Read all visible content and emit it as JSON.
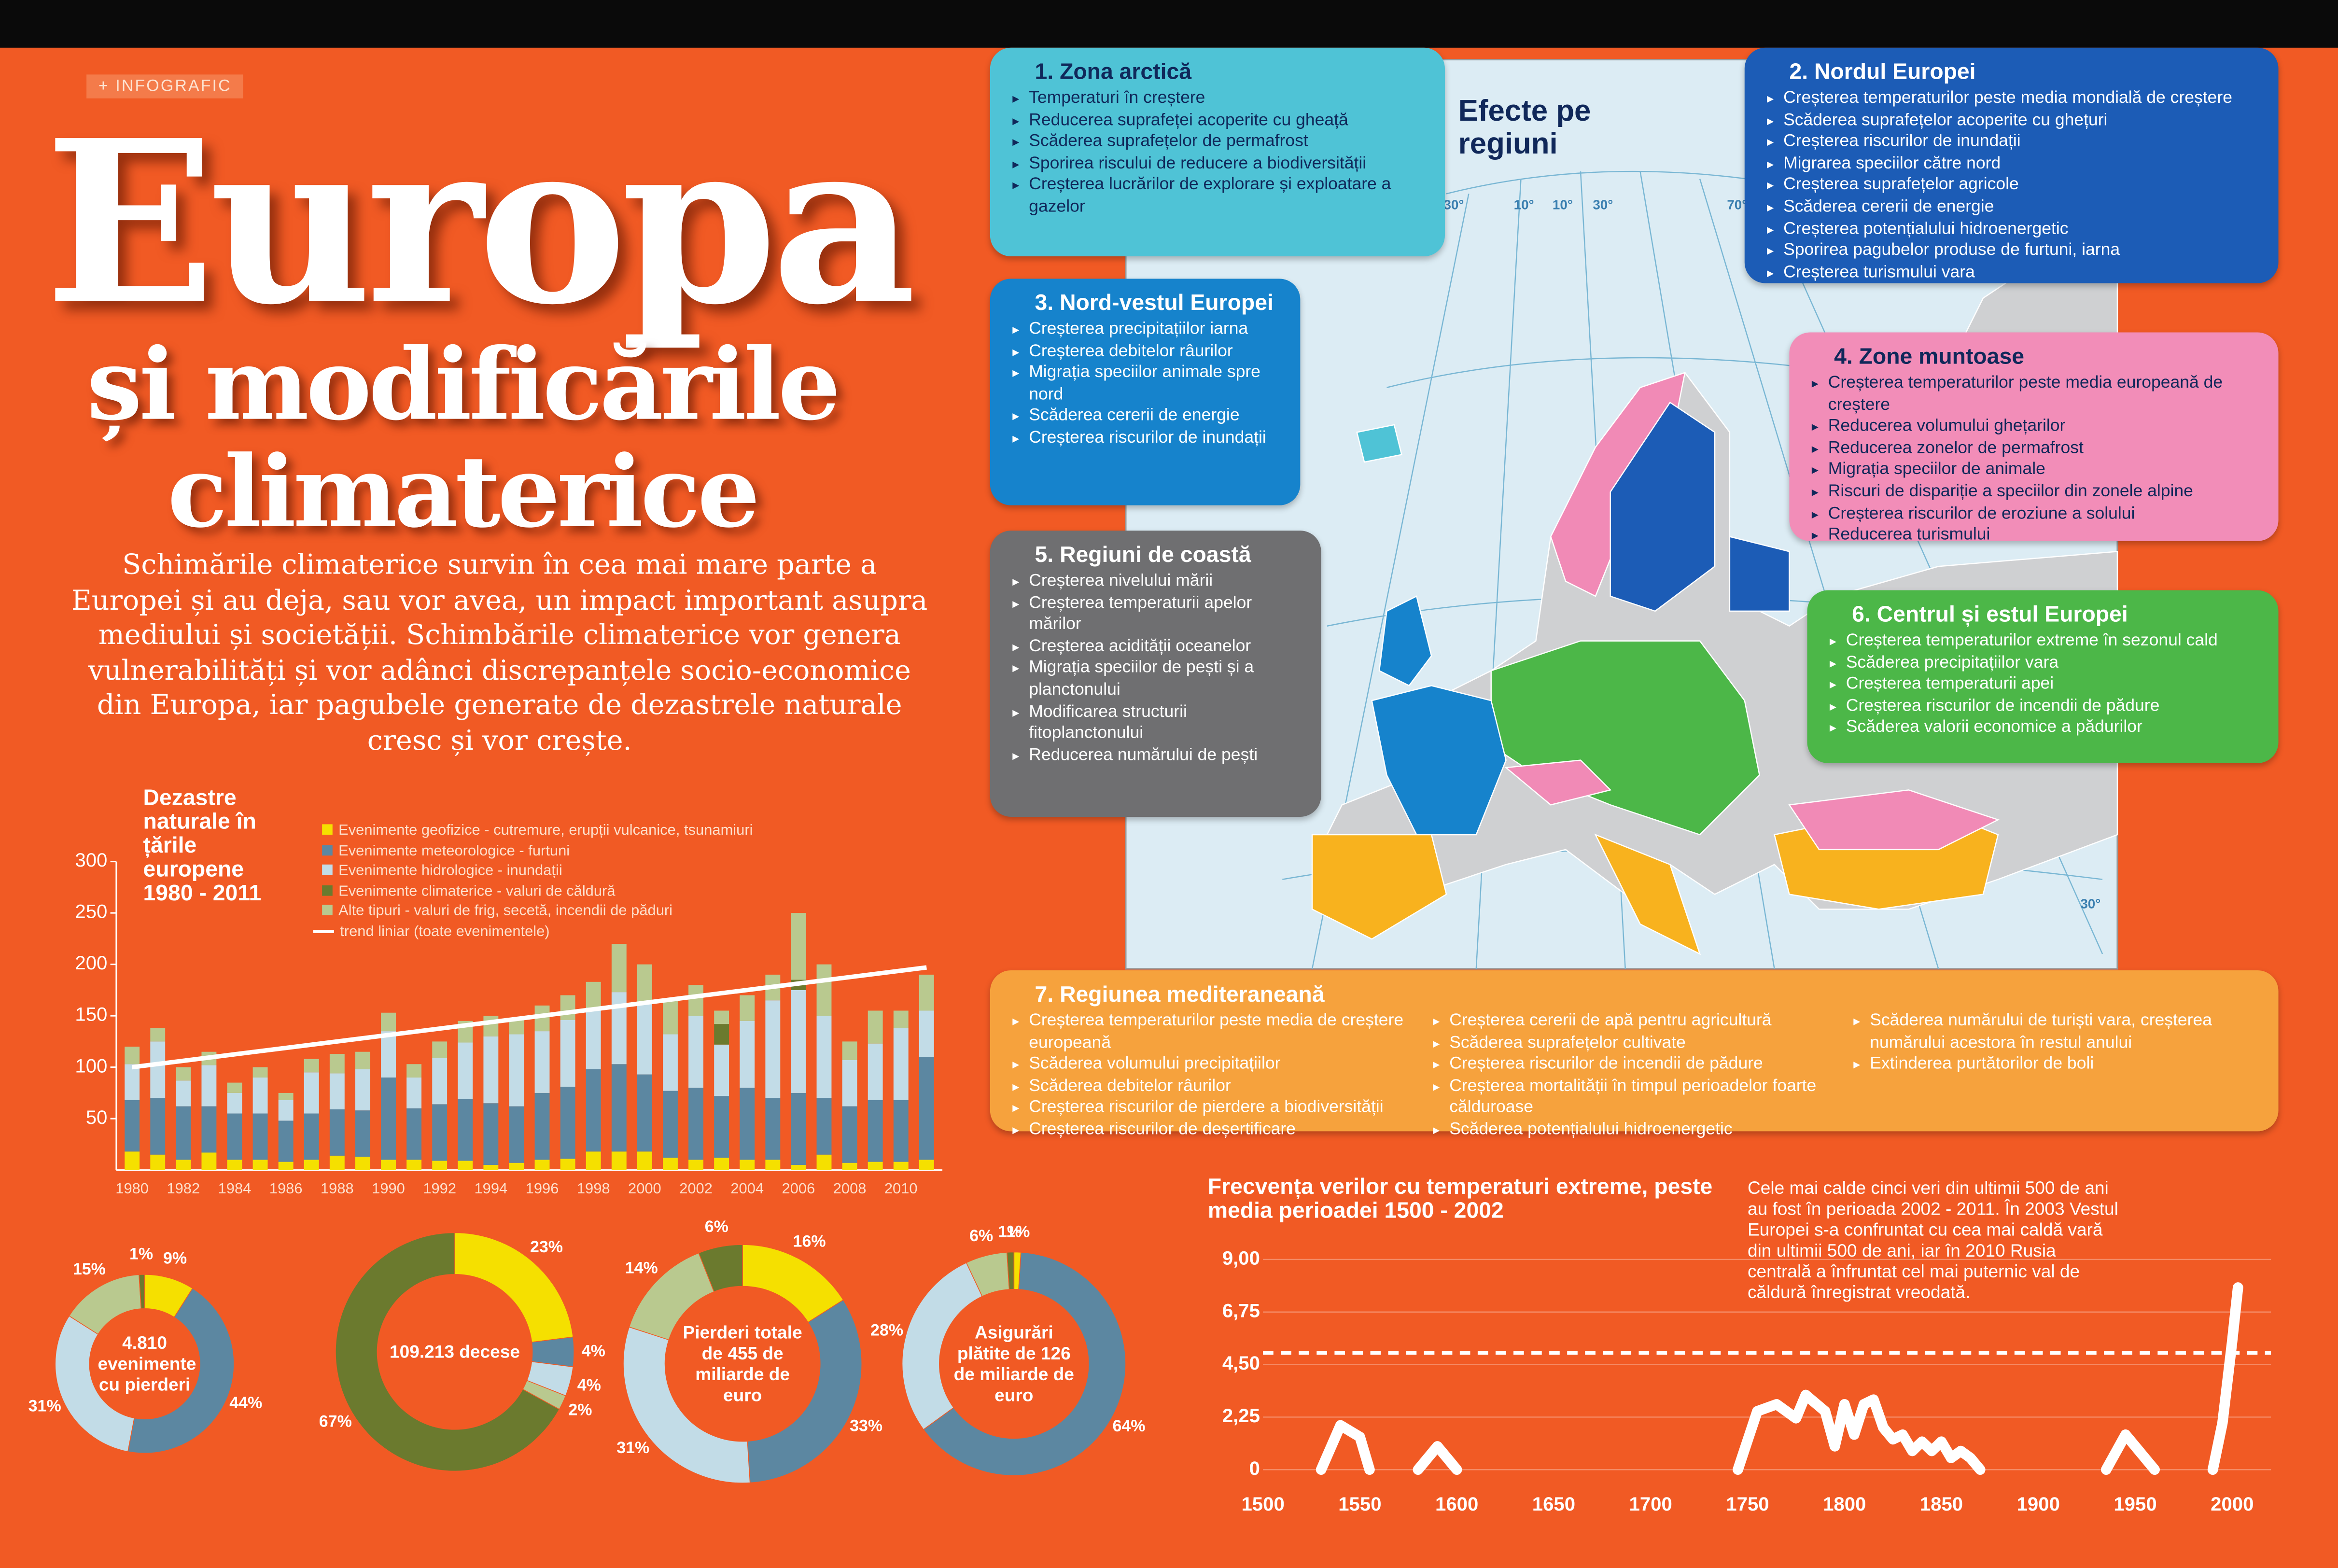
{
  "header": {
    "tag": "+ INFOGRAFIC",
    "title": "Europa",
    "subtitle": "și modificările climaterice",
    "intro": "Schimările climaterice survin în cea mai mare parte a Europei și au deja, sau vor avea, un impact important asupra mediului și societății. Schimbările climaterice vor genera vulnerabilități și vor adânci discrepanțele socio-economice din Europa, iar pagubele generate de dezastrele naturale cresc și vor crește."
  },
  "map": {
    "title": "Efecte pe regiuni",
    "labels": [
      "30°",
      "10°",
      "10°",
      "30°",
      "70°",
      "30°"
    ]
  },
  "regions": [
    {
      "title": "1. Zona arctică",
      "color": "#4fc3d6",
      "text_color": "#10285a",
      "items": [
        "Temperaturi în creștere",
        "Reducerea suprafeței acoperite cu gheață",
        "Scăderea suprafețelor de permafrost",
        "Sporirea riscului de reducere a biodiversității",
        "Creșterea lucrărilor de explorare și exploatare a gazelor"
      ]
    },
    {
      "title": "2. Nordul Europei",
      "color": "#1c5cb6",
      "text_color": "#ffffff",
      "items": [
        "Creșterea temperaturilor peste media mondială de creștere",
        "Scăderea suprafețelor acoperite cu ghețuri",
        "Creșterea riscurilor de inundații",
        "Migrarea speciilor către nord",
        "Creșterea suprafețelor agricole",
        "Scăderea cererii de energie",
        "Creșterea potențialului hidroenergetic",
        "Sporirea pagubelor produse de furtuni, iarna",
        "Creșterea turismului vara"
      ]
    },
    {
      "title": "3. Nord-vestul Europei",
      "color": "#1683cc",
      "text_color": "#ffffff",
      "items": [
        "Creșterea precipitațiilor iarna",
        "Creșterea debitelor râurilor",
        "Migrația speciilor animale spre nord",
        "Scăderea cererii de energie",
        "Creșterea riscurilor de inundații"
      ]
    },
    {
      "title": "4.  Zone muntoase",
      "color": "#f28db8",
      "text_color": "#10285a",
      "items": [
        "Creșterea temperaturilor peste media europeană de creștere",
        "Reducerea volumului ghețarilor",
        "Reducerea zonelor de permafrost",
        "Migrația speciilor de animale",
        "Riscuri de dispariție a speciilor din zonele alpine",
        "Creșterea riscurilor de eroziune a solului",
        "Reducerea turismului"
      ]
    },
    {
      "title": "5. Regiuni de coastă",
      "color": "#6f6f71",
      "text_color": "#ffffff",
      "items": [
        "Creșterea nivelului mării",
        "Creșterea temperaturii apelor mărilor",
        "Creșterea acidității oceanelor",
        "Migrația speciilor de pești și a planctonului",
        "Modificarea structurii fitoplanctonului",
        "Reducerea numărului de pești"
      ]
    },
    {
      "title": "6. Centrul și estul Europei",
      "color": "#4cb748",
      "text_color": "#ffffff",
      "items": [
        "Creșterea temperaturilor extreme în sezonul cald",
        "Scăderea precipitațiilor vara",
        "Creșterea temperaturii apei",
        "Creșterea riscurilor de incendii de pădure",
        "Scăderea valorii economice a pădurilor"
      ]
    },
    {
      "title": "7. Regiunea mediteraneană",
      "color": "#f6a23d",
      "text_color": "#ffffff",
      "items": [
        "Creșterea temperaturilor peste media de creștere europeană",
        "Scăderea volumului precipitațiilor",
        "Scăderea debitelor râurilor",
        "Creșterea riscurilor de pierdere a biodiversității",
        "Creșterea riscurilor de deșertificare",
        "Creșterea cererii de apă pentru agricultură",
        "Scăderea suprafețelor cultivate",
        "Creșterea riscurilor de incendii de pădure",
        "Creșterea mortalității în timpul perioadelor foarte călduroase",
        "Scăderea potențialului hidroenergetic",
        "Scăderea numărului de turiști vara, creșterea numărului acestora în restul anului",
        "Extinderea purtătorilor de boli"
      ]
    }
  ],
  "chart_data": [
    {
      "type": "bar",
      "stacked": true,
      "title": "Dezastre naturale în țările europene 1980 - 2011",
      "x": [
        1980,
        1981,
        1982,
        1983,
        1984,
        1985,
        1986,
        1987,
        1988,
        1989,
        1990,
        1991,
        1992,
        1993,
        1994,
        1995,
        1996,
        1997,
        1998,
        1999,
        2000,
        2001,
        2002,
        2003,
        2004,
        2005,
        2006,
        2007,
        2008,
        2009,
        2010,
        2011
      ],
      "xlim": [
        1979.5,
        2011.5
      ],
      "xticks": [
        1980,
        1982,
        1984,
        1986,
        1988,
        1990,
        1992,
        1994,
        1996,
        1998,
        2000,
        2002,
        2004,
        2006,
        2008,
        2010
      ],
      "ylim": [
        0,
        300
      ],
      "yticks": [
        50,
        100,
        150,
        200,
        250,
        300
      ],
      "series": [
        {
          "name": "Evenimente geofizice - cutremure, erupții vulcanice, tsunamiuri",
          "color": "#f5e000",
          "values": [
            18,
            15,
            10,
            17,
            10,
            10,
            8,
            10,
            14,
            13,
            10,
            10,
            9,
            9,
            5,
            7,
            10,
            11,
            18,
            18,
            18,
            12,
            10,
            12,
            10,
            10,
            5,
            15,
            7,
            8,
            8,
            10
          ]
        },
        {
          "name": "Evenimente meteorologice - furtuni",
          "color": "#5c87a1",
          "values": [
            50,
            55,
            52,
            45,
            45,
            45,
            40,
            45,
            45,
            45,
            80,
            50,
            55,
            60,
            60,
            55,
            65,
            70,
            80,
            85,
            75,
            65,
            70,
            60,
            70,
            60,
            70,
            55,
            55,
            60,
            60,
            100
          ]
        },
        {
          "name": "Evenimente hidrologice - inundații",
          "color": "#c2dce7",
          "values": [
            35,
            55,
            25,
            40,
            20,
            35,
            20,
            40,
            35,
            40,
            45,
            30,
            45,
            55,
            65,
            70,
            60,
            65,
            60,
            70,
            70,
            55,
            70,
            50,
            65,
            95,
            100,
            80,
            45,
            55,
            70,
            45
          ]
        },
        {
          "name": "Evenimente climaterice - valuri de căldură",
          "color": "#6b7a2e",
          "values": [
            0,
            0,
            0,
            0,
            0,
            0,
            0,
            0,
            0,
            0,
            0,
            0,
            0,
            0,
            0,
            0,
            0,
            0,
            0,
            0,
            0,
            0,
            0,
            20,
            0,
            0,
            10,
            0,
            0,
            0,
            0,
            0
          ]
        },
        {
          "name": "Alte tipuri - valuri de frig, secetă, incendii de păduri",
          "color": "#b9c98f",
          "values": [
            17,
            13,
            13,
            13,
            10,
            10,
            7,
            13,
            19,
            17,
            18,
            13,
            16,
            21,
            20,
            16,
            25,
            24,
            25,
            47,
            37,
            33,
            30,
            13,
            25,
            25,
            65,
            50,
            18,
            32,
            17,
            35
          ]
        }
      ],
      "trend": {
        "name": "trend liniar (toate evenimentele)",
        "color": "#ffffff",
        "x": [
          1980,
          2011
        ],
        "values": [
          100,
          197
        ]
      }
    },
    {
      "type": "pie",
      "center_label": "4.810 evenimente cu pierderi",
      "values": [
        9,
        44,
        31,
        15,
        1
      ],
      "value_labels": [
        "9%",
        "44%",
        "31%",
        "15%",
        "1%"
      ],
      "colors": [
        "#f5e000",
        "#5c87a1",
        "#c2dce7",
        "#b9c98f",
        "#6b7a2e"
      ]
    },
    {
      "type": "pie",
      "center_label": "109.213 decese",
      "values": [
        23,
        4,
        4,
        2,
        67
      ],
      "value_labels": [
        "23%",
        "4%",
        "4%",
        "2%",
        "67%"
      ],
      "colors": [
        "#f5e000",
        "#5c87a1",
        "#c2dce7",
        "#b9c98f",
        "#6b7a2e"
      ]
    },
    {
      "type": "pie",
      "center_label": "Pierderi totale de 455 de miliarde de euro",
      "values": [
        16,
        33,
        31,
        14,
        6
      ],
      "value_labels": [
        "16%",
        "33%",
        "31%",
        "14%",
        "6%"
      ],
      "colors": [
        "#f5e000",
        "#5c87a1",
        "#c2dce7",
        "#b9c98f",
        "#6b7a2e"
      ]
    },
    {
      "type": "pie",
      "center_label": "Asigurări plătite de 126 de miliarde de euro",
      "values": [
        1,
        64,
        28,
        6,
        1
      ],
      "value_labels": [
        "1%",
        "64%",
        "28%",
        "6%",
        "1%"
      ],
      "colors": [
        "#f5e000",
        "#5c87a1",
        "#c2dce7",
        "#b9c98f",
        "#6b7a2e"
      ]
    },
    {
      "type": "line",
      "title": "Frecvența verilor cu temperaturi extreme, peste media perioadei 1500 - 2002",
      "annotation": "Cele mai calde cinci veri din ultimii 500 de ani au fost în perioada 2002 - 2011. În 2003 Vestul Europei s-a confruntat cu cea mai caldă vară din ultimii 500 de ani, iar în 2010 Rusia centrală a înfruntat cel mai puternic val de căldură înregistrat vreodată.",
      "xlim": [
        1500,
        2020
      ],
      "xticks": [
        1500,
        1550,
        1600,
        1650,
        1700,
        1750,
        1800,
        1850,
        1900,
        1950,
        2000
      ],
      "ylim": [
        0,
        9
      ],
      "yticks": [
        0,
        {
          "value": 2.25,
          "label": "2,25"
        },
        {
          "value": 4.5,
          "label": "4,50"
        },
        {
          "value": 6.75,
          "label": "6,75"
        },
        {
          "value": 9,
          "label": "9,00"
        }
      ],
      "grid": true,
      "reference_line": 5.0,
      "series": [
        {
          "color": "#ffffff",
          "x": [
            1530,
            1540,
            1550,
            1555,
            1570,
            1580,
            1590,
            1600,
            1680,
            1745,
            1755,
            1765,
            1775,
            1780,
            1790,
            1795,
            1800,
            1805,
            1810,
            1815,
            1820,
            1825,
            1830,
            1835,
            1840,
            1845,
            1850,
            1855,
            1860,
            1865,
            1870,
            1900,
            1935,
            1945,
            1955,
            1960,
            1975,
            1990,
            1995,
            2000,
            2003
          ],
          "values": [
            0,
            1.9,
            1.4,
            0,
            null,
            0,
            1.0,
            0,
            null,
            0,
            2.5,
            2.8,
            2.2,
            3.2,
            2.5,
            1.0,
            2.8,
            1.5,
            2.8,
            3.0,
            1.8,
            1.3,
            1.5,
            0.8,
            1.2,
            0.8,
            1.2,
            0.5,
            0.8,
            0.5,
            0,
            null,
            0,
            1.5,
            0.5,
            0,
            null,
            0,
            2.0,
            5.5,
            7.8
          ]
        }
      ]
    }
  ]
}
